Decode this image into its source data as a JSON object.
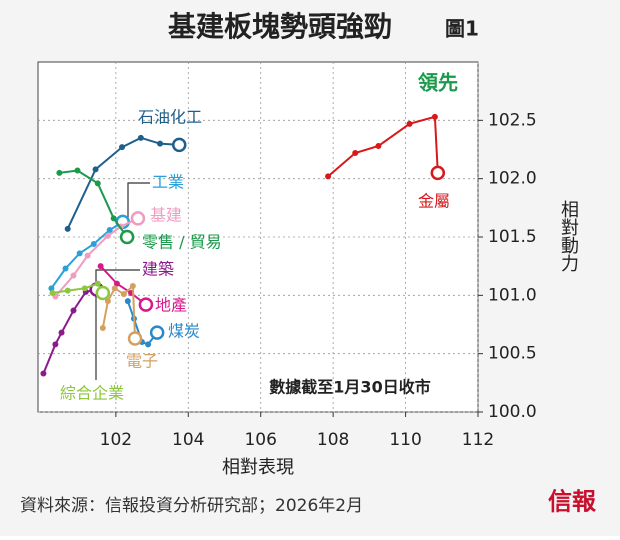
{
  "chart_data": {
    "type": "scatter",
    "title": "基建板塊勢頭強勁",
    "subtitle": "圖1",
    "annotation_top": "領先",
    "annotation_bottom": "數據截至1月30日收市",
    "x_label": "相對表現",
    "y_label": "相對動力",
    "source": "資料來源：信報投資分析研究部；2026年2月",
    "logo": "信報",
    "xlim": [
      99.85,
      112
    ],
    "ylim": [
      100,
      103
    ],
    "xticks": [
      102,
      104,
      106,
      108,
      110,
      112
    ],
    "yticks": [
      {
        "value": 100,
        "label": "100.0"
      },
      100.5,
      {
        "value": 101,
        "label": "101.0"
      },
      101.5,
      {
        "value": 102,
        "label": "102.0"
      },
      102.5
    ],
    "grid": true,
    "series": [
      {
        "name": "石油化工",
        "color": "#1f5f8b",
        "x": [
          100.67,
          101.44,
          102.17,
          102.69,
          103.22,
          103.75
        ],
        "values": [
          101.57,
          102.08,
          102.27,
          102.35,
          102.3,
          102.29
        ]
      },
      {
        "name": "金屬",
        "color": "#d7191c",
        "x": [
          107.86,
          108.61,
          109.25,
          110.11,
          110.81,
          110.89
        ],
        "values": [
          102.02,
          102.22,
          102.28,
          102.47,
          102.53,
          102.05
        ]
      },
      {
        "name": "工業",
        "color": "#2aa0d8",
        "x": [
          100.22,
          100.61,
          101.0,
          101.39,
          101.83,
          102.19
        ],
        "values": [
          101.06,
          101.23,
          101.36,
          101.44,
          101.56,
          101.63
        ]
      },
      {
        "name": "基建",
        "color": "#f09bc0",
        "x": [
          100.33,
          100.83,
          101.22,
          101.78,
          102.14,
          102.61
        ],
        "values": [
          100.99,
          101.17,
          101.34,
          101.51,
          101.59,
          101.66
        ]
      },
      {
        "name": "零售 / 貿易",
        "color": "#1a9a4a",
        "x": [
          100.44,
          100.94,
          101.5,
          101.94,
          102.31
        ],
        "values": [
          102.05,
          102.07,
          101.96,
          101.66,
          101.5
        ]
      },
      {
        "name": "建築",
        "color": "#8b1a8b",
        "x": [
          100.0,
          100.33,
          100.5,
          100.83,
          101.17,
          101.47
        ],
        "values": [
          100.33,
          100.58,
          100.68,
          100.87,
          101.03,
          101.05
        ]
      },
      {
        "name": "地產",
        "color": "#d6198a",
        "x": [
          101.58,
          102.03,
          102.42,
          102.83
        ],
        "values": [
          101.25,
          101.1,
          101.02,
          100.92
        ]
      },
      {
        "name": "煤炭",
        "color": "#2a88c8",
        "x": [
          102.33,
          102.5,
          102.72,
          102.89,
          103.14
        ],
        "values": [
          100.95,
          100.8,
          100.6,
          100.58,
          100.68
        ]
      },
      {
        "name": "電子",
        "color": "#d4a060",
        "x": [
          101.64,
          101.78,
          101.97,
          102.22,
          102.47,
          102.53
        ],
        "values": [
          100.72,
          100.95,
          101.06,
          101.01,
          101.08,
          100.63
        ]
      },
      {
        "name": "綜合企業",
        "color": "#8dc63f",
        "x": [
          100.25,
          100.67,
          101.14,
          101.5,
          101.64
        ],
        "values": [
          101.02,
          101.04,
          101.06,
          101.1,
          101.02
        ]
      }
    ]
  }
}
